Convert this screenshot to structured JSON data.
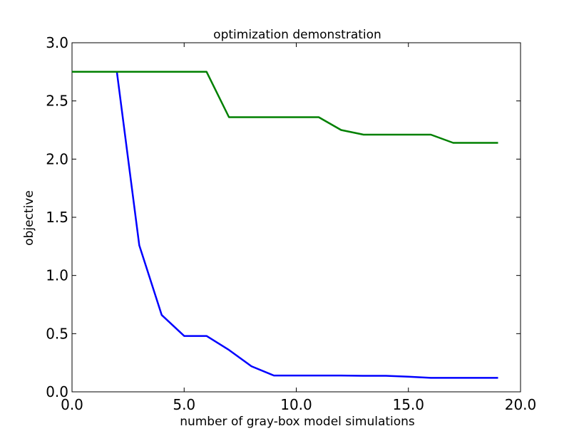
{
  "chart_data": {
    "type": "line",
    "title": "optimization demonstration",
    "xlabel": "number of gray-box model simulations",
    "ylabel": "objective",
    "xlim": [
      0,
      20
    ],
    "ylim": [
      0,
      3
    ],
    "grid": false,
    "x_ticks": [
      "0.0",
      "5.0",
      "10.0",
      "15.0",
      "20.0"
    ],
    "y_ticks": [
      "0.0",
      "0.5",
      "1.0",
      "1.5",
      "2.0",
      "2.5",
      "3.0"
    ],
    "series": [
      {
        "color": "#0000ff",
        "x": [
          0,
          1,
          2,
          3,
          4,
          5,
          6,
          7,
          8,
          9,
          10,
          11,
          12,
          13,
          14,
          15,
          16,
          17,
          18,
          19
        ],
        "values": [
          2.75,
          2.75,
          2.75,
          1.26,
          0.66,
          0.48,
          0.48,
          0.36,
          0.22,
          0.14,
          0.14,
          0.14,
          0.14,
          0.138,
          0.138,
          0.13,
          0.12,
          0.12,
          0.12,
          0.12
        ]
      },
      {
        "color": "#008000",
        "x": [
          0,
          1,
          2,
          3,
          4,
          5,
          6,
          7,
          8,
          9,
          10,
          11,
          12,
          13,
          14,
          15,
          16,
          17,
          18,
          19
        ],
        "values": [
          2.75,
          2.75,
          2.75,
          2.75,
          2.75,
          2.75,
          2.75,
          2.36,
          2.36,
          2.36,
          2.36,
          2.36,
          2.25,
          2.21,
          2.21,
          2.21,
          2.21,
          2.14,
          2.14,
          2.14
        ]
      }
    ]
  }
}
